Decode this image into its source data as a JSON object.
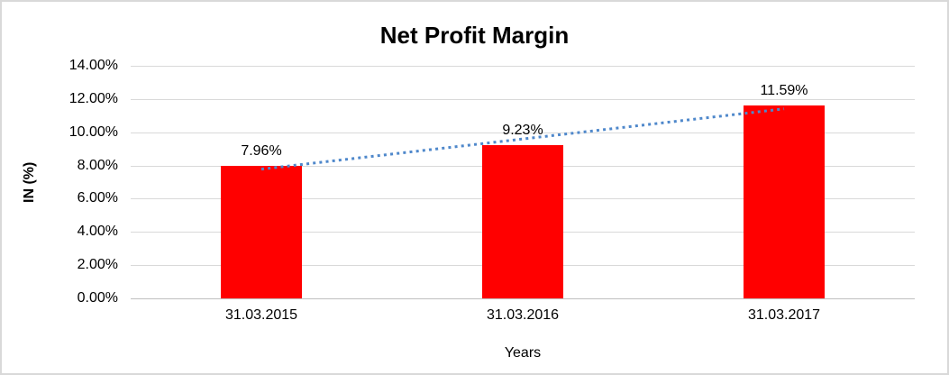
{
  "chart_data": {
    "type": "bar",
    "title": "Net Profit Margin",
    "xlabel": "Years",
    "ylabel": "IN (%)",
    "categories": [
      "31.03.2015",
      "31.03.2016",
      "31.03.2017"
    ],
    "values": [
      7.96,
      9.23,
      11.59
    ],
    "value_labels": [
      "7.96%",
      "9.23%",
      "11.59%"
    ],
    "ylim": [
      0,
      14
    ],
    "ytick_step": 2,
    "ytick_labels": [
      "0.00%",
      "2.00%",
      "4.00%",
      "6.00%",
      "8.00%",
      "10.00%",
      "12.00%",
      "14.00%"
    ],
    "grid": true,
    "legend": "none",
    "bar_color": "#ff0000",
    "gridline_color": "#d9d9d9",
    "axis_line_color": "#bfbfbf",
    "text_color": "#000000",
    "trendline": {
      "type": "linear",
      "style": "dotted",
      "color": "#4f88cb",
      "endpoint_values": [
        7.78,
        11.41
      ]
    }
  }
}
